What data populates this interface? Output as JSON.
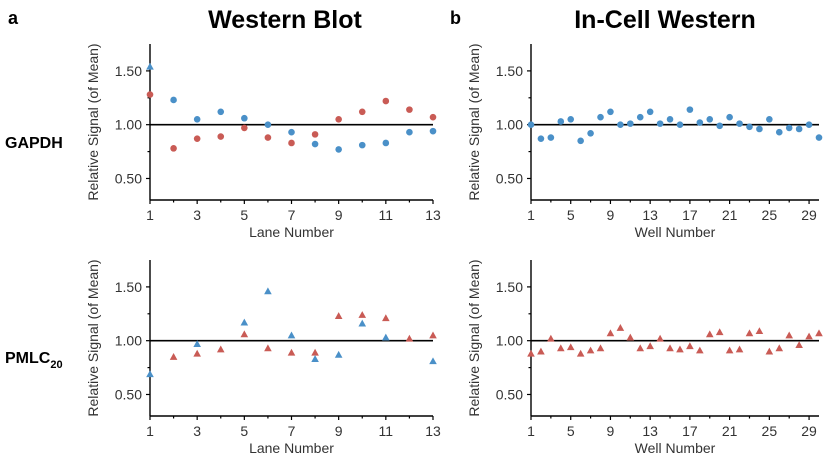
{
  "figure": {
    "panel_a": "a",
    "panel_b": "b",
    "col_titles": [
      "Western Blot",
      "In-Cell Western"
    ],
    "row_labels": [
      {
        "main": "GAPDH",
        "sub": ""
      },
      {
        "main": "PMLC",
        "sub": "20"
      }
    ]
  },
  "colors": {
    "blue": "#4a90c8",
    "red": "#c95b55"
  },
  "chart_data": [
    {
      "type": "scatter",
      "id": "wb-gapdh",
      "title": "Western Blot",
      "xlabel": "Lane Number",
      "ylabel": "Relative Signal (of Mean)",
      "xlim": [
        1,
        13
      ],
      "ylim": [
        0.3,
        1.75
      ],
      "xticks": [
        1,
        3,
        5,
        7,
        9,
        11,
        13
      ],
      "yticks": [
        0.5,
        1.0,
        1.5
      ],
      "ytick_labels": [
        "0.50",
        "1.00",
        "1.50"
      ],
      "reference_y": 1.0,
      "series": [
        {
          "name": "red",
          "marker": "circle",
          "color": "#c95b55",
          "x": [
            1,
            2,
            3,
            4,
            5,
            6,
            7,
            8,
            9,
            10,
            11,
            12,
            13
          ],
          "y": [
            1.28,
            0.78,
            0.87,
            0.89,
            0.97,
            0.88,
            0.83,
            0.91,
            1.05,
            1.12,
            1.22,
            1.14,
            1.07
          ]
        },
        {
          "name": "blue",
          "marker": "triangle",
          "color": "#4a90c8",
          "x": [
            1
          ],
          "y": [
            1.54
          ]
        },
        {
          "name": "blue",
          "marker": "circle",
          "color": "#4a90c8",
          "x": [
            2,
            3,
            4,
            5,
            6,
            7,
            8,
            9,
            10,
            11,
            12,
            13
          ],
          "y": [
            1.23,
            1.05,
            1.12,
            1.06,
            1.0,
            0.93,
            0.82,
            0.77,
            0.81,
            0.83,
            0.93,
            0.94
          ]
        }
      ]
    },
    {
      "type": "scatter",
      "id": "icw-gapdh",
      "title": "In-Cell Western",
      "xlabel": "Well Number",
      "ylabel": "Relative Signal (of Mean)",
      "xlim": [
        1,
        30
      ],
      "ylim": [
        0.3,
        1.75
      ],
      "xticks": [
        1,
        5,
        9,
        13,
        17,
        21,
        25,
        29
      ],
      "yticks": [
        0.5,
        1.0,
        1.5
      ],
      "ytick_labels": [
        "0.50",
        "1.00",
        "1.50"
      ],
      "reference_y": 1.0,
      "series": [
        {
          "name": "blue",
          "marker": "circle",
          "color": "#4a90c8",
          "x": [
            1,
            2,
            3,
            4,
            5,
            6,
            7,
            8,
            9,
            10,
            11,
            12,
            13,
            14,
            15,
            16,
            17,
            18,
            19,
            20,
            21,
            22,
            23,
            24,
            25,
            26,
            27,
            28,
            29,
            30
          ],
          "y": [
            1.0,
            0.87,
            0.88,
            1.03,
            1.05,
            0.85,
            0.92,
            1.07,
            1.12,
            1.0,
            1.01,
            1.07,
            1.12,
            1.01,
            1.05,
            1.0,
            1.14,
            1.02,
            1.05,
            0.99,
            1.07,
            1.01,
            0.98,
            0.96,
            1.05,
            0.93,
            0.97,
            0.96,
            1.0,
            0.88
          ]
        }
      ]
    },
    {
      "type": "scatter",
      "id": "wb-pmlc",
      "title": "",
      "xlabel": "Lane Number",
      "ylabel": "Relative Signal (of Mean)",
      "xlim": [
        1,
        13
      ],
      "ylim": [
        0.3,
        1.75
      ],
      "xticks": [
        1,
        3,
        5,
        7,
        9,
        11,
        13
      ],
      "yticks": [
        0.5,
        1.0,
        1.5
      ],
      "ytick_labels": [
        "0.50",
        "1.00",
        "1.50"
      ],
      "reference_y": 1.0,
      "series": [
        {
          "name": "red",
          "marker": "triangle",
          "color": "#c95b55",
          "x": [
            2,
            3,
            4,
            5,
            6,
            7,
            8,
            9,
            10,
            11,
            12,
            13
          ],
          "y": [
            0.85,
            0.88,
            0.92,
            1.06,
            0.93,
            0.89,
            0.89,
            1.23,
            1.24,
            1.21,
            1.02,
            1.05
          ]
        },
        {
          "name": "blue",
          "marker": "triangle",
          "color": "#4a90c8",
          "x": [
            1,
            3,
            5,
            6,
            7,
            8,
            9,
            10,
            11,
            13
          ],
          "y": [
            0.69,
            0.97,
            1.17,
            1.46,
            1.05,
            0.83,
            0.87,
            1.16,
            1.03,
            0.81
          ]
        }
      ]
    },
    {
      "type": "scatter",
      "id": "icw-pmlc",
      "title": "",
      "xlabel": "Well Number",
      "ylabel": "Relative Signal (of Mean)",
      "xlim": [
        1,
        30
      ],
      "ylim": [
        0.3,
        1.75
      ],
      "xticks": [
        1,
        5,
        9,
        13,
        17,
        21,
        25,
        29
      ],
      "yticks": [
        0.5,
        1.0,
        1.5
      ],
      "ytick_labels": [
        "0.50",
        "1.00",
        "1.50"
      ],
      "reference_y": 1.0,
      "series": [
        {
          "name": "red",
          "marker": "triangle",
          "color": "#c95b55",
          "x": [
            1,
            2,
            3,
            4,
            5,
            6,
            7,
            8,
            9,
            10,
            11,
            12,
            13,
            14,
            15,
            16,
            17,
            18,
            19,
            20,
            21,
            22,
            23,
            24,
            25,
            26,
            27,
            28,
            29,
            30
          ],
          "y": [
            0.88,
            0.9,
            1.02,
            0.93,
            0.94,
            0.88,
            0.91,
            0.93,
            1.07,
            1.12,
            1.03,
            0.93,
            0.95,
            1.02,
            0.93,
            0.92,
            0.95,
            0.91,
            1.06,
            1.08,
            0.91,
            0.92,
            1.07,
            1.09,
            0.9,
            0.93,
            1.05,
            0.96,
            1.04,
            1.07
          ]
        }
      ]
    }
  ]
}
